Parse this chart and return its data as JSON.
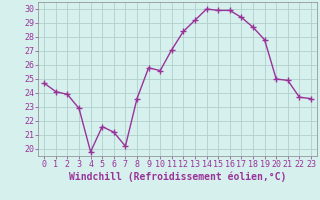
{
  "x": [
    0,
    1,
    2,
    3,
    4,
    5,
    6,
    7,
    8,
    9,
    10,
    11,
    12,
    13,
    14,
    15,
    16,
    17,
    18,
    19,
    20,
    21,
    22,
    23
  ],
  "y": [
    24.7,
    24.1,
    23.9,
    22.9,
    19.8,
    21.6,
    21.2,
    20.2,
    23.6,
    25.8,
    25.6,
    27.1,
    28.4,
    29.2,
    30.0,
    29.9,
    29.9,
    29.4,
    28.7,
    27.8,
    25.0,
    24.9,
    23.7,
    23.6
  ],
  "line_color": "#993399",
  "marker": "+",
  "marker_size": 4,
  "xlabel": "Windchill (Refroidissement éolien,°C)",
  "xlabel_fontsize": 7,
  "yticks": [
    20,
    21,
    22,
    23,
    24,
    25,
    26,
    27,
    28,
    29,
    30
  ],
  "xticks": [
    0,
    1,
    2,
    3,
    4,
    5,
    6,
    7,
    8,
    9,
    10,
    11,
    12,
    13,
    14,
    15,
    16,
    17,
    18,
    19,
    20,
    21,
    22,
    23
  ],
  "xlim": [
    -0.5,
    23.5
  ],
  "ylim": [
    19.5,
    30.5
  ],
  "bg_color": "#d6f0ee",
  "grid_color": "#b0d0cc",
  "tick_fontsize": 6,
  "line_width": 1.0
}
